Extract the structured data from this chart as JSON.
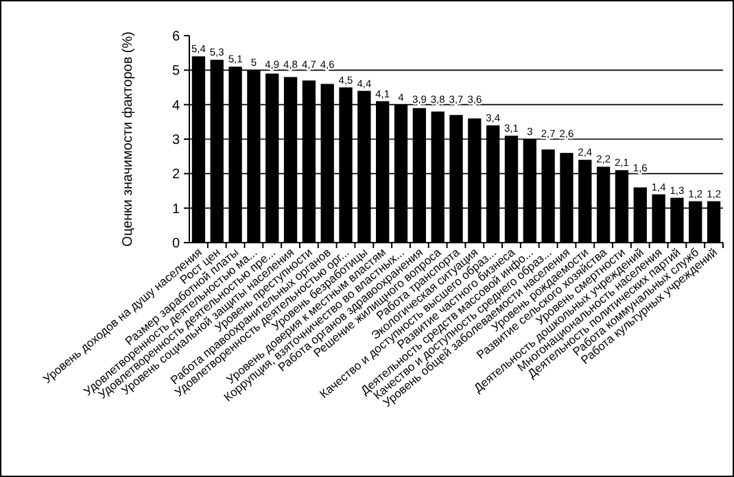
{
  "chart_data": {
    "type": "bar",
    "ylabel": "Оценки значимости факторов (%)",
    "categories": [
      "Уровень доходов на душу населения",
      "Рост цен",
      "Размер заработной платы",
      "Удовлетворенность деятельностью ма...",
      "Удовлетворенность деятельностью пре...",
      "Уровень социальной защиты населения",
      "Уровень преступности",
      "Работа правоохранительных органов",
      "Удовлетворенность деятельностью орг...",
      "Уровень безработицы",
      "Уровень доверия к местным властям",
      "Коррупция, взяточничество во властных...",
      "Работа органов здравоохранения",
      "Решение жилищного вопроса",
      "Работа транспорта",
      "Экологическая ситуация",
      "Качество и доступность высшего образ...",
      "Развитие частного бизнеса",
      "Деятельность средств массовой инфо...",
      "Качество и доступность среднего образ...",
      "Уровень общей заболеваемости населения",
      "Уровень рождаемости",
      "Развитие сельского хозяйства",
      "Уровень смертности",
      "Деятельность дошкольных учреждений",
      "Многонациональность населения",
      "Деятельность политических партий",
      "Работа коммунальных служб",
      "Работа культурных учреждений"
    ],
    "values": [
      5.4,
      5.3,
      5.1,
      5,
      4.9,
      4.8,
      4.7,
      4.6,
      4.5,
      4.4,
      4.1,
      4,
      3.9,
      3.8,
      3.7,
      3.6,
      3.4,
      3.1,
      3,
      2.7,
      2.6,
      2.4,
      2.2,
      2.1,
      1.6,
      1.4,
      1.3,
      1.2,
      1.2
    ],
    "value_labels": [
      "5,4",
      "5,3",
      "5,1",
      "5",
      "4,9",
      "4,8",
      "4,7",
      "4,6",
      "4,5",
      "4,4",
      "4,1",
      "4",
      "3,9",
      "3,8",
      "3,7",
      "3,6",
      "3,4",
      "3,1",
      "3",
      "2,7",
      "2,6",
      "2,4",
      "2,2",
      "2,1",
      "1,6",
      "1,4",
      "1,3",
      "1,2",
      "1,2"
    ],
    "color": "#000000",
    "ylim": [
      0,
      6
    ],
    "yticks": [
      0,
      1,
      2,
      3,
      4,
      5,
      6
    ],
    "grid": "y"
  }
}
